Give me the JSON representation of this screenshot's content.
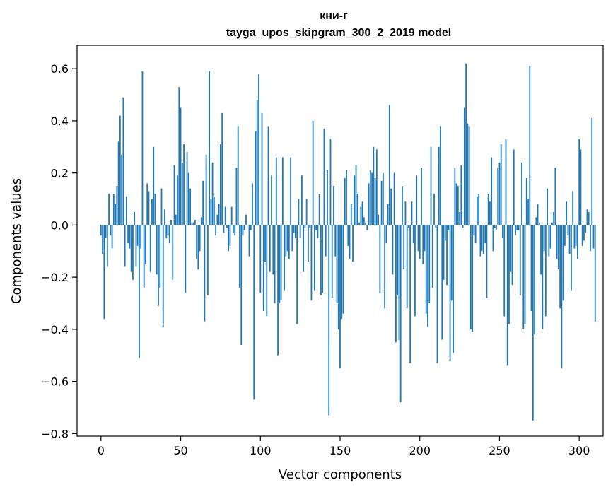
{
  "chart_data": {
    "type": "bar",
    "title": "кни-г",
    "subtitle": "tayga_upos_skipgram_300_2_2019 model",
    "xlabel": "Vector components",
    "ylabel": "Components values",
    "xlim": [
      -15,
      315
    ],
    "ylim": [
      -0.81,
      0.69
    ],
    "xticks": [
      0,
      50,
      100,
      150,
      200,
      250,
      300
    ],
    "yticks": [
      -0.8,
      -0.6,
      -0.4,
      -0.2,
      0.0,
      0.2,
      0.4,
      0.6
    ],
    "ytick_labels": [
      "−0.8",
      "−0.6",
      "−0.4",
      "−0.2",
      "0.0",
      "0.2",
      "0.4",
      "0.6"
    ],
    "grid": false,
    "bar_color": "#1f77b4",
    "values": [
      -0.04,
      -0.11,
      -0.36,
      -0.05,
      -0.16,
      0.12,
      -0.04,
      -0.09,
      0.12,
      0.08,
      0.15,
      0.32,
      0.42,
      0.27,
      0.49,
      -0.16,
      0.11,
      -0.07,
      -0.09,
      -0.18,
      -0.21,
      0.05,
      -0.16,
      -0.08,
      -0.51,
      -0.09,
      0.59,
      -0.24,
      -0.15,
      0.16,
      0.13,
      -0.18,
      0.1,
      0.3,
      0.12,
      -0.19,
      -0.31,
      -0.24,
      0.14,
      -0.39,
      0.06,
      -0.05,
      -0.04,
      -0.07,
      0.02,
      -0.21,
      0.23,
      0.04,
      0.19,
      0.53,
      0.45,
      0.24,
      0.31,
      -0.26,
      0.28,
      0.2,
      0.14,
      0.01,
      0.01,
      0.02,
      -0.13,
      -0.17,
      -0.1,
      0.03,
      0.17,
      -0.37,
      0.27,
      -0.27,
      0.59,
      0.1,
      0.24,
      0.11,
      -0.04,
      0.04,
      0.08,
      0.31,
      0.43,
      -0.03,
      0.07,
      -0.01,
      -0.1,
      -0.08,
      0.07,
      -0.03,
      -0.04,
      0.22,
      0.38,
      -0.24,
      -0.46,
      -0.04,
      -0.02,
      0.04,
      0.0,
      -0.12,
      -0.02,
      0.16,
      -0.67,
      0.36,
      0.48,
      0.58,
      -0.26,
      0.43,
      -0.33,
      -0.14,
      -0.35,
      0.38,
      -0.18,
      0.19,
      -0.19,
      -0.3,
      0.26,
      -0.5,
      -0.3,
      -0.29,
      0.26,
      -0.25,
      -0.12,
      -0.1,
      -0.13,
      0.26,
      -0.1,
      -0.03,
      -0.05,
      -0.38,
      0.1,
      -0.05,
      0.19,
      -0.18,
      -0.01,
      0.1,
      -0.14,
      -0.01,
      -0.29,
      0.4,
      -0.25,
      -0.02,
      -0.05,
      0.12,
      -0.27,
      -0.26,
      0.37,
      -0.12,
      0.21,
      -0.73,
      0.33,
      -0.28,
      0.15,
      -0.12,
      -0.3,
      -0.4,
      -0.55,
      -0.36,
      -0.34,
      0.18,
      0.21,
      -0.08,
      -0.13,
      0.08,
      -0.14,
      0.19,
      0.23,
      0.12,
      0.01,
      0.07,
      0.09,
      0.03,
      0.01,
      -0.02,
      0.16,
      0.21,
      0.2,
      0.3,
      0.18,
      0.29,
      0.04,
      -0.26,
      0.17,
      0.2,
      -0.32,
      -0.07,
      0.08,
      0.46,
      0.14,
      -0.19,
      0.2,
      -0.45,
      -0.27,
      -0.44,
      -0.68,
      0.15,
      -0.17,
      0.09,
      -0.32,
      -0.01,
      -0.53,
      0.09,
      -0.07,
      -0.35,
      0.19,
      -0.1,
      -0.13,
      0.22,
      -0.15,
      -0.1,
      -0.34,
      -0.39,
      -0.3,
      0.3,
      -0.24,
      0.12,
      -0.01,
      -0.53,
      0.3,
      0.38,
      -0.44,
      -0.21,
      -0.06,
      -0.23,
      -0.02,
      -0.52,
      -0.29,
      -0.49,
      0.22,
      0.16,
      0.15,
      0.05,
      0.23,
      -0.01,
      0.45,
      0.62,
      0.39,
      0.38,
      -0.4,
      -0.41,
      -0.04,
      -0.07,
      0.11,
      0.12,
      -0.12,
      -0.1,
      -0.11,
      -0.07,
      -0.28,
      0.12,
      0.09,
      0.26,
      -0.1,
      -0.01,
      -0.02,
      0.22,
      0.24,
      0.31,
      -0.05,
      -0.35,
      0.33,
      -0.54,
      -0.38,
      -0.18,
      -0.23,
      0.29,
      -0.04,
      -0.02,
      -0.02,
      -0.27,
      0.24,
      -0.4,
      -0.38,
      0.18,
      0.1,
      0.61,
      -0.33,
      -0.75,
      -0.42,
      0.03,
      0.08,
      0.01,
      -0.19,
      -0.4,
      -0.1,
      -0.35,
      0.14,
      -0.12,
      -0.09,
      0.01,
      0.05,
      0.22,
      -0.13,
      -0.17,
      -0.32,
      -0.55,
      -0.29,
      -0.08,
      0.09,
      -0.04,
      -0.11,
      -0.25,
      0.13,
      -0.09,
      -0.08,
      -0.13,
      0.33,
      0.29,
      -0.08,
      -0.06,
      -0.03,
      0.06,
      0.05,
      -0.1,
      0.41,
      -0.09,
      -0.37
    ]
  }
}
